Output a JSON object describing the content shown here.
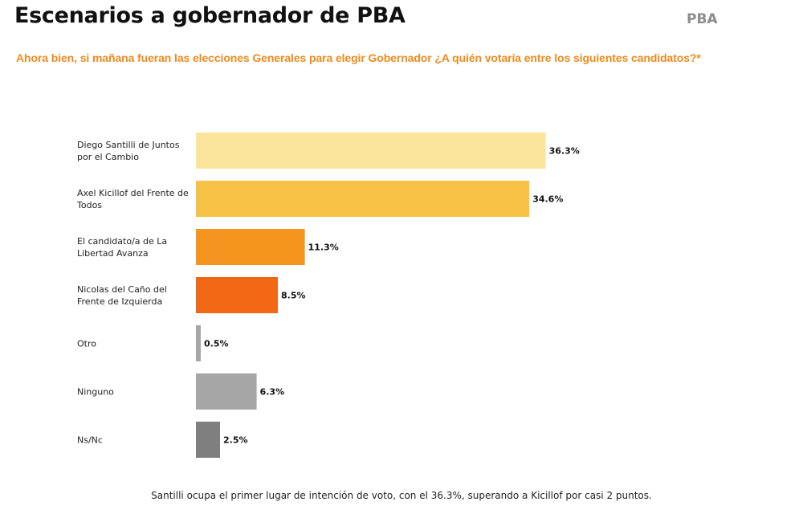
{
  "header": {
    "title": "Escenarios a gobernador de PBA",
    "tag": "PBA"
  },
  "question": "Ahora bien, si mañana fueran las elecciones Generales para elegir Gobernador ¿A quién votaría entre los siguientes candidatos?*",
  "footer": "Santilli ocupa el primer lugar de intención de voto, con el 36.3%, superando a Kicillof por casi 2 puntos.",
  "colors": {
    "accent": "#f08a1c",
    "santilli": "#fbe49c",
    "kicillof": "#f6c145",
    "libertad": "#f5941e",
    "fit": "#f06716",
    "otro": "#a6a6a6",
    "ninguno": "#a6a6a6",
    "nsnc": "#7f7f7f"
  },
  "chart_data": {
    "type": "bar",
    "orientation": "horizontal",
    "title": "",
    "xlabel": "",
    "ylabel": "",
    "xlim": [
      0,
      40
    ],
    "grid": false,
    "legend": "none",
    "categories": [
      [
        "Diego Santilli de Juntos",
        "por el Cambio"
      ],
      [
        "Axel Kicillof del Frente de",
        "Todos"
      ],
      [
        "El candidato/a de La",
        "Libertad Avanza"
      ],
      [
        "Nicolas del Caño del",
        "Frente de Izquierda"
      ],
      [
        "Otro"
      ],
      [
        "Ninguno"
      ],
      [
        "Ns/Nc"
      ]
    ],
    "values": [
      36.3,
      34.6,
      11.3,
      8.5,
      0.5,
      6.3,
      2.5
    ],
    "value_labels": [
      "36.3%",
      "34.6%",
      "11.3%",
      "8.5%",
      "0.5%",
      "6.3%",
      "2.5%"
    ],
    "bar_colors": [
      "#fbe49c",
      "#f6c145",
      "#f5941e",
      "#f06716",
      "#a6a6a6",
      "#a6a6a6",
      "#7f7f7f"
    ]
  }
}
